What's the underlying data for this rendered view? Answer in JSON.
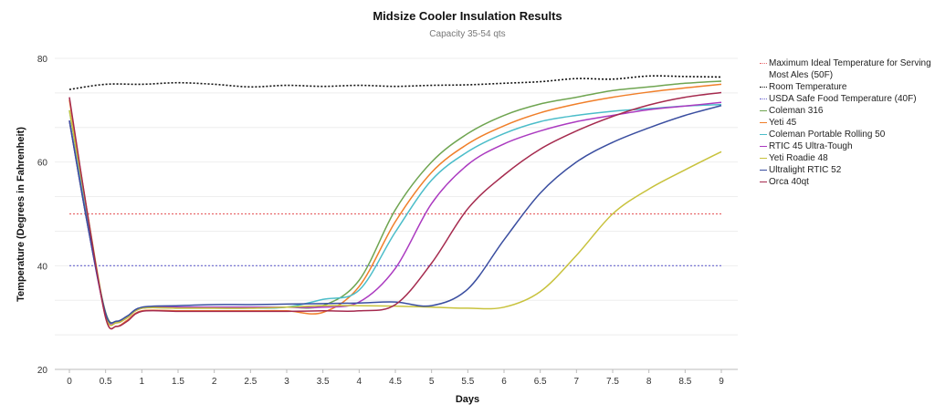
{
  "chart_data": {
    "type": "line",
    "title": "Midsize Cooler Insulation Results",
    "subtitle": "Capacity 35-54 qts",
    "xlabel": "Days",
    "ylabel": "Temperature (Degrees in Fahrenheit)",
    "xlim": [
      0,
      9
    ],
    "ylim": [
      20,
      80
    ],
    "xticks": [
      "0",
      "0.5",
      "1",
      "1.5",
      "2",
      "2.5",
      "3",
      "3.5",
      "4",
      "4.5",
      "5",
      "5.5",
      "6",
      "6.5",
      "7",
      "7.5",
      "8",
      "8.5",
      "9"
    ],
    "yticks": [
      "20",
      "40",
      "60",
      "80"
    ],
    "grid": true,
    "legend_position": "right",
    "x": [
      0,
      0.25,
      0.5,
      0.65,
      0.8,
      1,
      1.5,
      2,
      2.5,
      3,
      3.5,
      4,
      4.5,
      5,
      5.5,
      6,
      6.5,
      7,
      7.5,
      8,
      8.5,
      9
    ],
    "reference_lines": [
      {
        "name": "Maximum Ideal Temperature for Serving Most Ales (50F)",
        "value": 50,
        "color": "#e8696b",
        "style": "dotted"
      },
      {
        "name": "Room Temperature",
        "color": "#111111",
        "style": "dotted",
        "x": [
          0,
          0.5,
          1,
          1.5,
          2,
          2.5,
          3,
          3.5,
          4,
          4.5,
          5,
          5.5,
          6,
          6.5,
          7,
          7.5,
          8,
          8.5,
          9
        ],
        "values": [
          74,
          75,
          75,
          75.3,
          75,
          74.5,
          74.8,
          74.6,
          74.8,
          74.6,
          74.8,
          74.9,
          75.2,
          75.5,
          76.1,
          76,
          76.6,
          76.5,
          76.4
        ]
      },
      {
        "name": "USDA Safe Food Temperature (40F)",
        "value": 40,
        "color": "#6a66d0",
        "style": "dotted"
      }
    ],
    "series": [
      {
        "name": "Coleman 316",
        "color": "#6fa551",
        "values": [
          68,
          48,
          31,
          29.2,
          30,
          31.8,
          32,
          32,
          32,
          32,
          32.3,
          37.2,
          50.8,
          60,
          65.5,
          69,
          71.2,
          72.5,
          73.8,
          74.5,
          75.2,
          75.6
        ]
      },
      {
        "name": "Yeti 45",
        "color": "#f07f2a",
        "values": [
          72,
          50,
          30,
          28.3,
          29.5,
          31.3,
          31.3,
          31.3,
          31.3,
          31.3,
          31,
          36,
          48.5,
          58,
          63.5,
          67,
          69.5,
          71.2,
          72.5,
          73.5,
          74.3,
          75
        ]
      },
      {
        "name": "Coleman Portable Rolling 50",
        "color": "#4bbdc9",
        "values": [
          70,
          49,
          30.5,
          29,
          30,
          31.8,
          31.8,
          31.8,
          31.8,
          32,
          33.5,
          35.3,
          46.5,
          56.5,
          62,
          65.5,
          67.8,
          69,
          69.8,
          70.3,
          70.8,
          71.1
        ]
      },
      {
        "name": "RTIC 45 Ultra-Tough",
        "color": "#ab3ac0",
        "values": [
          68,
          48,
          30.5,
          29,
          30,
          31.8,
          32,
          32,
          32,
          32,
          32,
          33,
          39.5,
          52,
          59.5,
          63.5,
          66,
          67.8,
          69,
          70.1,
          70.8,
          71.5
        ]
      },
      {
        "name": "Yeti Roadie 48",
        "color": "#c8c23c",
        "values": [
          70,
          50,
          30.5,
          29,
          30,
          31.8,
          31.8,
          31.8,
          31.8,
          32,
          32.3,
          32.3,
          32.2,
          32,
          31.8,
          32,
          35,
          42,
          50,
          54.8,
          58.5,
          62
        ]
      },
      {
        "name": "Ultralight RTIC 52",
        "color": "#3a4ea0",
        "values": [
          68,
          48,
          30.8,
          29.3,
          30.3,
          32,
          32.3,
          32.5,
          32.5,
          32.6,
          32.7,
          32.8,
          33,
          32.3,
          35.5,
          45,
          54,
          60,
          63.8,
          66.6,
          69,
          70.9
        ]
      },
      {
        "name": "Orca 40qt",
        "color": "#a52a4e",
        "values": [
          72.5,
          50,
          30,
          28.3,
          29.3,
          31.2,
          31.2,
          31.2,
          31.2,
          31.2,
          31.3,
          31.3,
          32.5,
          40.5,
          51,
          57.5,
          62.5,
          66,
          68.8,
          71,
          72.5,
          73.4
        ]
      }
    ]
  }
}
